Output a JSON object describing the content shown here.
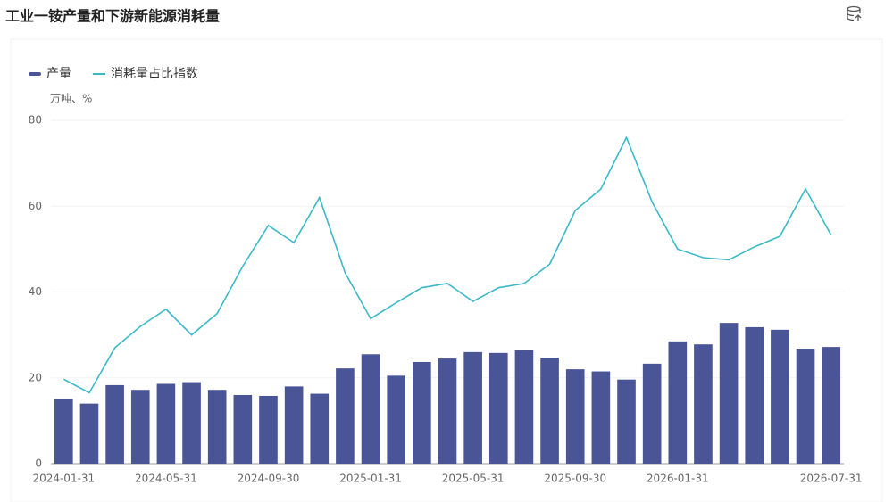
{
  "chart_data": {
    "type": "bar_line",
    "title": "工业一铵产量和下游新能源消耗量",
    "unit_label": "万吨、%",
    "categories": [
      "2024-01-31",
      null,
      null,
      null,
      "2024-05-31",
      null,
      null,
      null,
      "2024-09-30",
      null,
      null,
      null,
      "2025-01-31",
      null,
      null,
      null,
      "2025-05-31",
      null,
      null,
      null,
      "2025-09-30",
      null,
      null,
      null,
      "2026-01-31",
      null,
      null,
      null,
      null,
      null,
      "2026-07-31"
    ],
    "series": [
      {
        "name": "产量",
        "type": "bar",
        "color": "#4a5597",
        "values": [
          15,
          14,
          18.3,
          17.2,
          18.6,
          19,
          17.2,
          16,
          15.8,
          18,
          16.3,
          22.2,
          25.5,
          20.5,
          23.7,
          24.5,
          26,
          25.8,
          26.5,
          24.7,
          22,
          21.5,
          19.6,
          23.3,
          28.5,
          27.8,
          32.8,
          31.8,
          31.2,
          26.8,
          27.2
        ]
      },
      {
        "name": "消耗量占比指数",
        "type": "line",
        "color": "#3bb9c9",
        "values": [
          19.7,
          16.5,
          27,
          32,
          36,
          30,
          35,
          46,
          55.5,
          51.5,
          62,
          44.5,
          33.8,
          37.5,
          41,
          42,
          37.8,
          41,
          42,
          46.5,
          59,
          64,
          76,
          61,
          50,
          48,
          47.5,
          50.5,
          53,
          64,
          53.3
        ]
      }
    ],
    "ylim": [
      0,
      80
    ],
    "yticks": [
      0,
      20,
      40,
      60,
      80
    ],
    "grid": true
  }
}
